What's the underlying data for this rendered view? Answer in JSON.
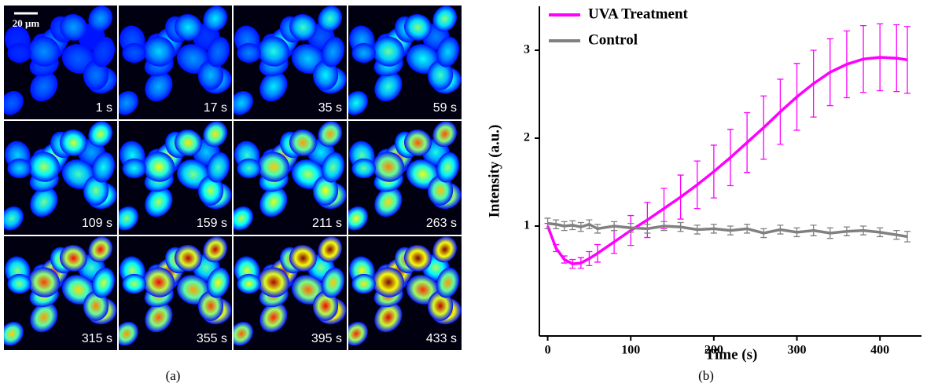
{
  "figure": {
    "panel_a": {
      "scale_bar": "20 μm",
      "frames": [
        "1 s",
        "17 s",
        "35 s",
        "59 s",
        "109 s",
        "159 s",
        "211 s",
        "263 s",
        "315 s",
        "355 s",
        "395 s",
        "433 s"
      ],
      "caption": "(a)"
    },
    "panel_b": {
      "caption": "(b)"
    }
  },
  "chart_data": {
    "type": "line",
    "x_label": "Time (s)",
    "y_label": "Intensity (a.u.)",
    "x": [
      0,
      10,
      20,
      30,
      40,
      50,
      60,
      80,
      100,
      120,
      140,
      160,
      180,
      200,
      220,
      240,
      260,
      280,
      300,
      320,
      340,
      360,
      380,
      400,
      420,
      433
    ],
    "series": [
      {
        "name": "UVA Treatment",
        "color": "#ff00ff",
        "values": [
          1.0,
          0.75,
          0.62,
          0.57,
          0.58,
          0.63,
          0.69,
          0.82,
          0.95,
          1.07,
          1.2,
          1.33,
          1.47,
          1.62,
          1.78,
          1.95,
          2.12,
          2.3,
          2.47,
          2.62,
          2.75,
          2.84,
          2.9,
          2.92,
          2.91,
          2.89
        ],
        "errors": [
          0.03,
          0.04,
          0.04,
          0.05,
          0.06,
          0.08,
          0.1,
          0.13,
          0.17,
          0.2,
          0.23,
          0.25,
          0.27,
          0.3,
          0.32,
          0.34,
          0.36,
          0.37,
          0.38,
          0.38,
          0.38,
          0.38,
          0.38,
          0.38,
          0.38,
          0.38
        ]
      },
      {
        "name": "Control",
        "color": "#808080",
        "values": [
          1.03,
          1.02,
          1.0,
          1.01,
          0.99,
          1.02,
          0.97,
          1.0,
          0.98,
          0.97,
          1.0,
          0.99,
          0.96,
          0.97,
          0.95,
          0.97,
          0.92,
          0.96,
          0.93,
          0.95,
          0.92,
          0.94,
          0.95,
          0.93,
          0.9,
          0.88
        ],
        "errors": [
          0.06,
          0.05,
          0.05,
          0.05,
          0.05,
          0.05,
          0.05,
          0.05,
          0.05,
          0.05,
          0.05,
          0.05,
          0.05,
          0.05,
          0.05,
          0.05,
          0.05,
          0.05,
          0.05,
          0.06,
          0.06,
          0.05,
          0.05,
          0.05,
          0.05,
          0.06
        ]
      }
    ],
    "xlim": [
      -10,
      450
    ],
    "ylim": [
      -0.25,
      3.5
    ],
    "xticks": [
      0,
      100,
      200,
      300,
      400
    ],
    "yticks": [
      1,
      2,
      3
    ],
    "grid": false,
    "legend": "upper left"
  }
}
